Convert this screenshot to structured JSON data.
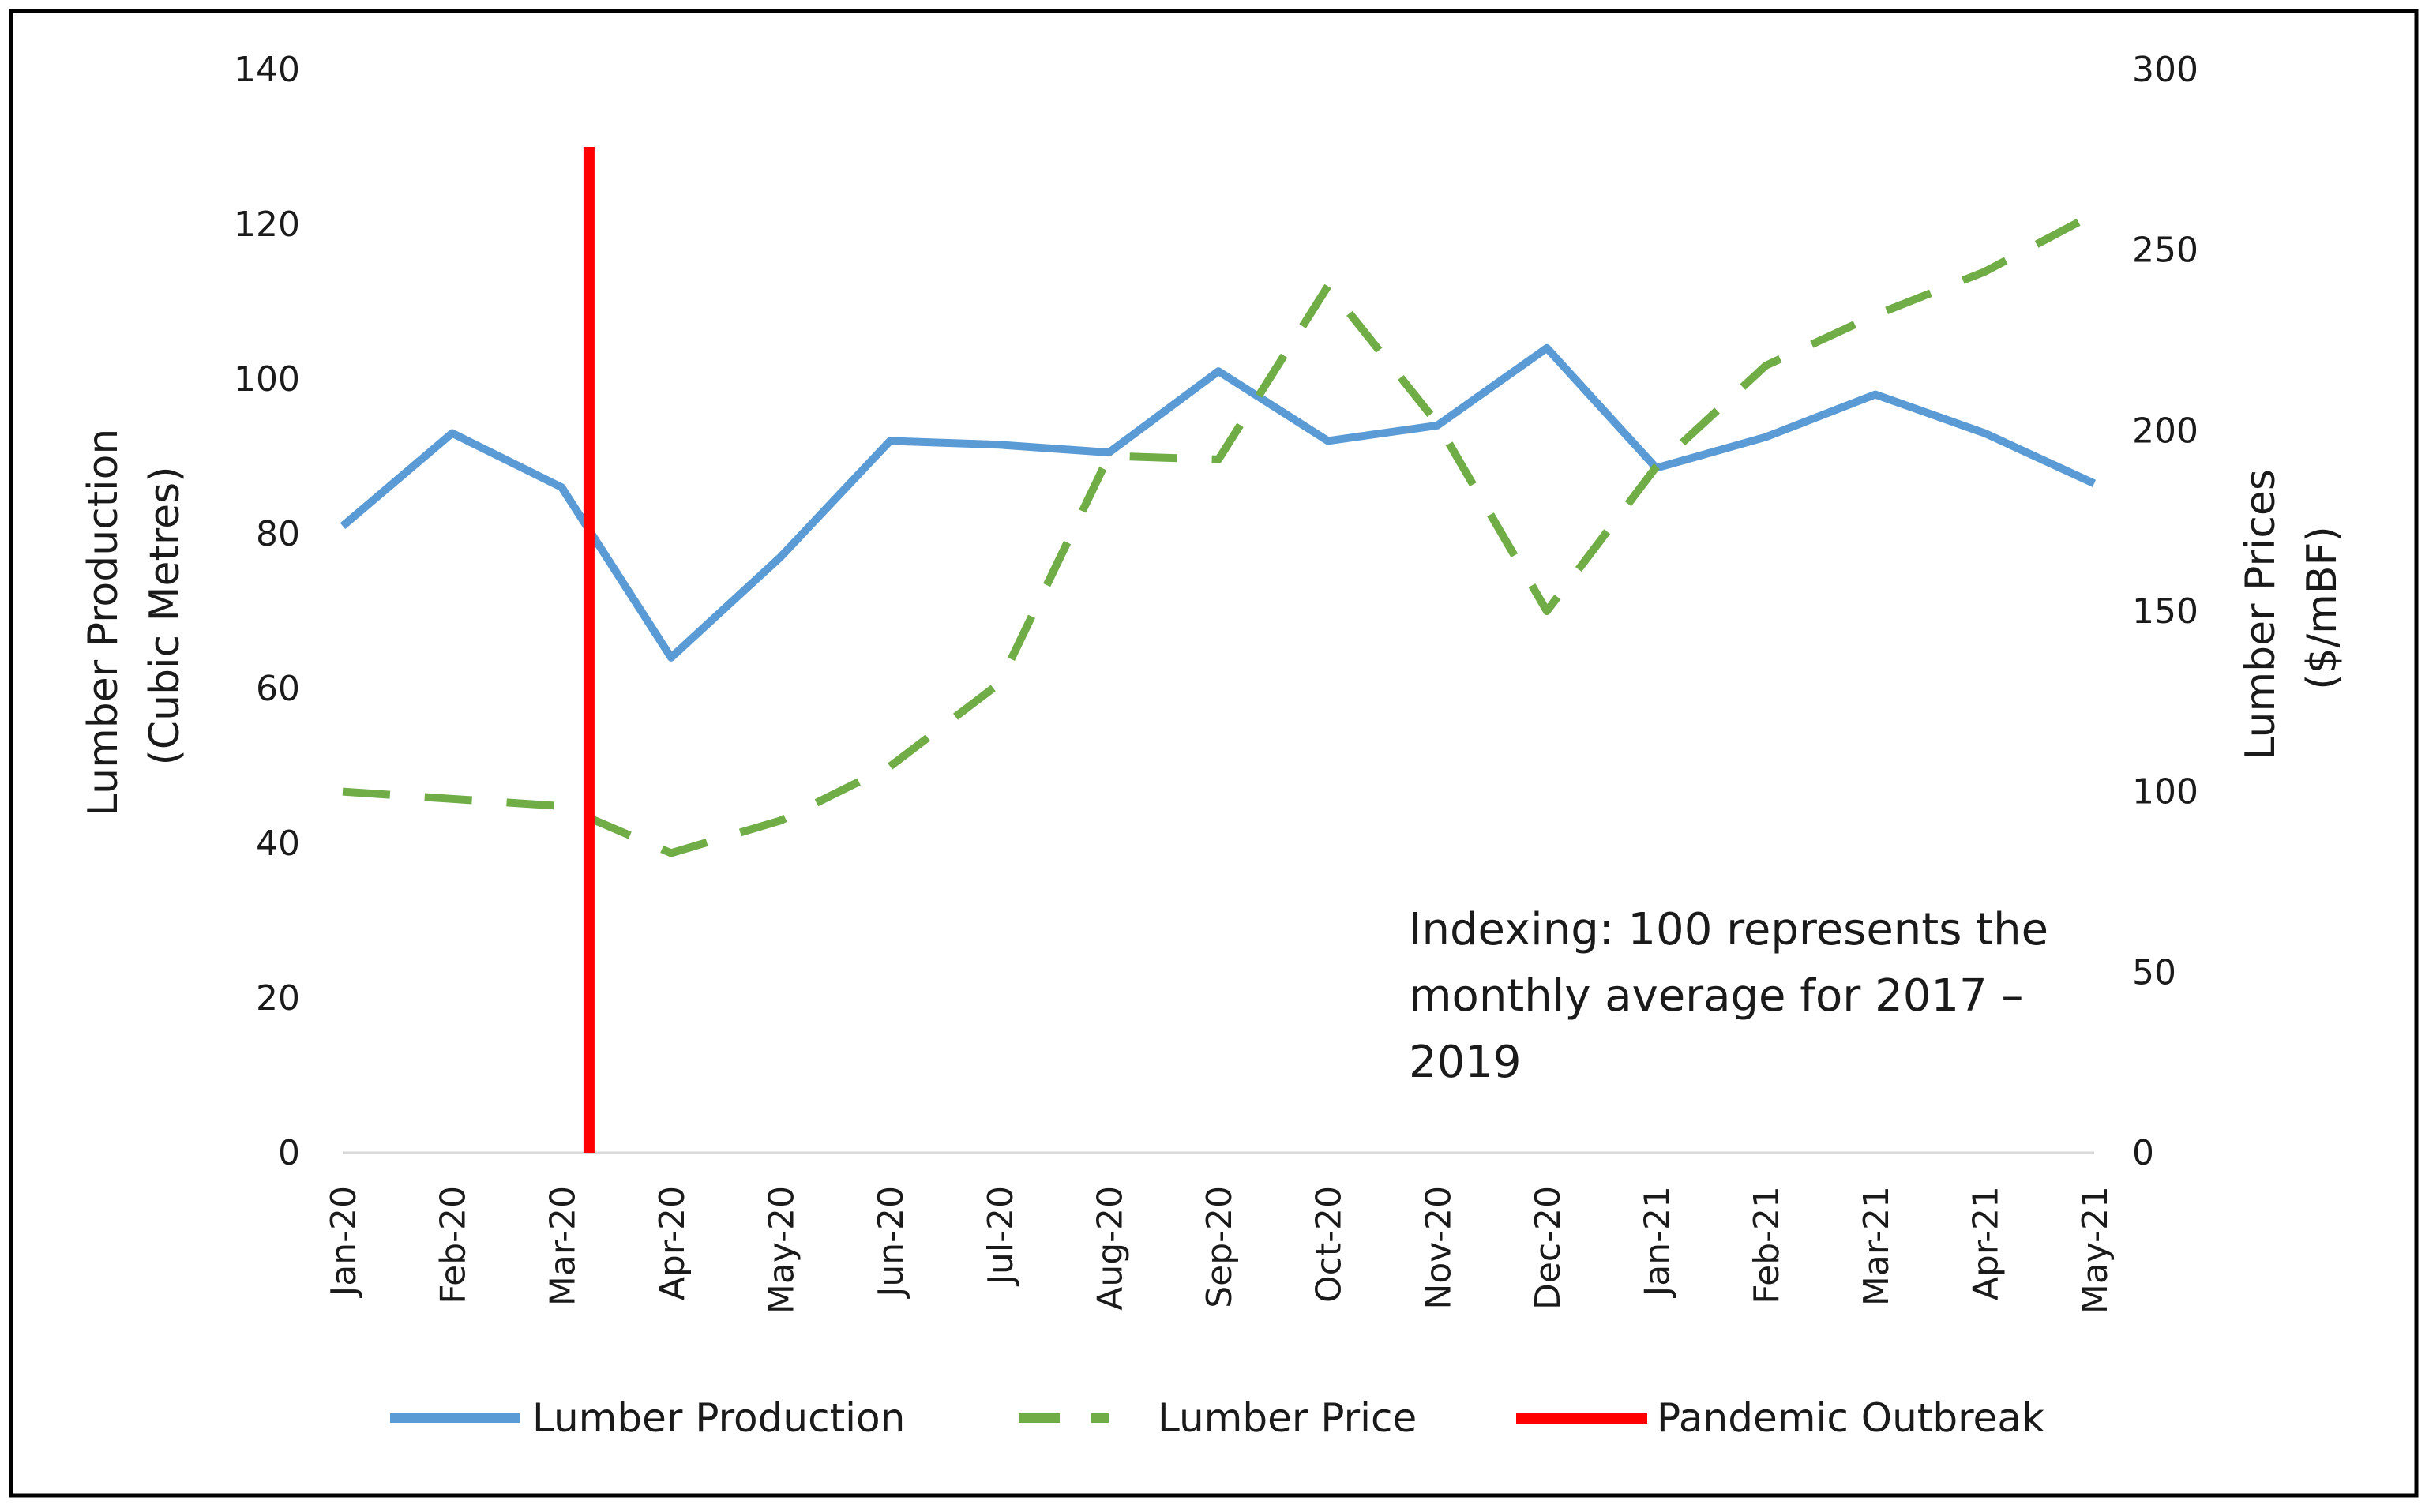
{
  "chart_data": {
    "type": "line",
    "categories": [
      "Jan-20",
      "Feb-20",
      "Mar-20",
      "Apr-20",
      "May-20",
      "Jun-20",
      "Jul-20",
      "Aug-20",
      "Sep-20",
      "Oct-20",
      "Nov-20",
      "Dec-20",
      "Jan-21",
      "Feb-21",
      "Mar-21",
      "Apr-21",
      "May-21"
    ],
    "series": [
      {
        "name": "Lumber Production",
        "axis": "left",
        "color": "#5b9bd5",
        "style": "solid",
        "values": [
          81,
          93,
          86,
          64,
          77,
          92,
          91.5,
          90.5,
          101,
          92,
          94,
          104,
          88.5,
          92.5,
          98,
          93,
          86.5
        ]
      },
      {
        "name": "Lumber Price",
        "axis": "right",
        "color": "#70ad47",
        "style": "dashed",
        "values": [
          100,
          98,
          96,
          83,
          92,
          107,
          130,
          193,
          192,
          240,
          202,
          150,
          190,
          218,
          232,
          244,
          260
        ]
      }
    ],
    "markers": [
      {
        "name": "Pandemic Outbreak",
        "color": "#ff0000",
        "x_index": 2.25,
        "y_left_top": 130
      }
    ],
    "y_left": {
      "label_line1": "Lumber Production",
      "label_line2": "(Cubic Metres)",
      "min": 0,
      "max": 140,
      "ticks": [
        "0",
        "20",
        "40",
        "60",
        "80",
        "100",
        "120",
        "140"
      ]
    },
    "y_right": {
      "label_line1": "Lumber Prices",
      "label_line2": "($/mBF)",
      "min": 0,
      "max": 300,
      "ticks": [
        "0",
        "50",
        "100",
        "150",
        "200",
        "250",
        "300"
      ]
    },
    "annotation": {
      "line1": "Indexing: 100 represents the",
      "line2": "monthly average for 2017 –",
      "line3": "2019"
    },
    "legend": {
      "placement": "bottom"
    },
    "grid": false
  }
}
